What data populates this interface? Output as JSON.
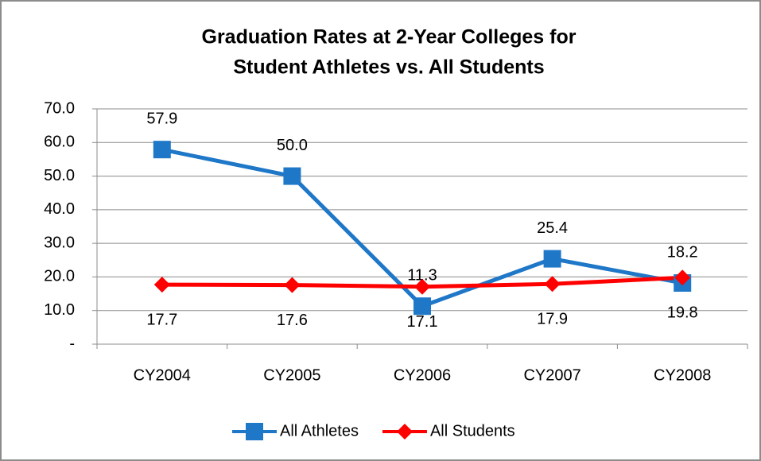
{
  "chart_data": {
    "type": "line",
    "title": [
      "Graduation Rates at 2-Year Colleges for",
      "Student Athletes vs. All Students"
    ],
    "categories": [
      "CY2004",
      "CY2005",
      "CY2006",
      "CY2007",
      "CY2008"
    ],
    "series": [
      {
        "name": "All Athletes",
        "color": "#1f77c8",
        "marker": "square",
        "values": [
          57.9,
          50.0,
          11.3,
          25.4,
          18.2
        ],
        "value_labels": [
          "57.9",
          "50.0",
          "11.3",
          "25.4",
          "18.2"
        ]
      },
      {
        "name": "All Students",
        "color": "#ff0000",
        "marker": "diamond",
        "values": [
          17.7,
          17.6,
          17.1,
          17.9,
          19.8
        ],
        "value_labels": [
          "17.7",
          "17.6",
          "17.1",
          "17.9",
          "19.8"
        ]
      }
    ],
    "ylim": [
      0,
      70
    ],
    "yticks": [
      {
        "value": 0,
        "label": "-"
      },
      {
        "value": 10,
        "label": "10.0"
      },
      {
        "value": 20,
        "label": "20.0"
      },
      {
        "value": 30,
        "label": "30.0"
      },
      {
        "value": 40,
        "label": "40.0"
      },
      {
        "value": 50,
        "label": "50.0"
      },
      {
        "value": 60,
        "label": "60.0"
      },
      {
        "value": 70,
        "label": "70.0"
      }
    ],
    "grid": true,
    "legend": "bottom"
  }
}
